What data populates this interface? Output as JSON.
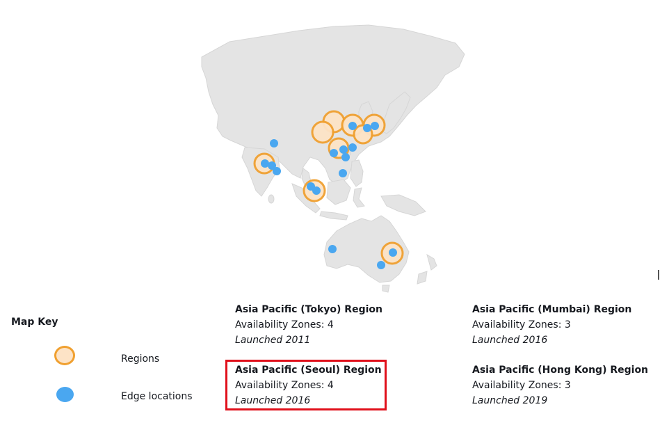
{
  "map": {
    "key_title": "Map Key",
    "key_items": [
      {
        "icon": "region-marker-icon",
        "label": "Regions"
      },
      {
        "icon": "edge-location-icon",
        "label": "Edge locations"
      }
    ],
    "colors": {
      "land": "#e4e4e4",
      "region_fill": "#fde3c6",
      "region_stroke": "#f0a030",
      "edge": "#4aa7f0",
      "highlight": "#e0101b"
    }
  },
  "regions": [
    {
      "name": "Asia Pacific (Tokyo) Region",
      "zones": "Availability Zones: 4",
      "launched": "Launched 2011"
    },
    {
      "name": "Asia Pacific (Mumbai) Region",
      "zones": "Availability Zones: 3",
      "launched": "Launched 2016"
    },
    {
      "name": "Asia Pacific (Seoul) Region",
      "zones": "Availability Zones: 4",
      "launched": "Launched 2016"
    },
    {
      "name": "Asia Pacific (Hong Kong) Region",
      "zones": "Availability Zones: 3",
      "launched": "Launched 2019"
    }
  ],
  "highlighted_region": "Asia Pacific (Seoul) Region"
}
